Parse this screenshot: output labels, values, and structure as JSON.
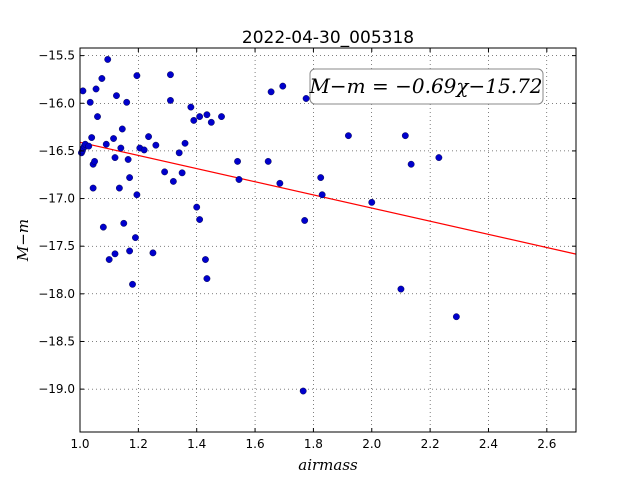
{
  "chart_data": {
    "type": "scatter",
    "title": "2022-04-30_005318",
    "xlabel": "airmass",
    "ylabel": "M−m",
    "xlim": [
      1.0,
      2.7
    ],
    "ylim": [
      -19.45,
      -15.42
    ],
    "y_axis_direction": "down-is-more-negative",
    "x_ticks": [
      "1.0",
      "1.2",
      "1.4",
      "1.6",
      "1.8",
      "2.0",
      "2.2",
      "2.4",
      "2.6"
    ],
    "y_ticks": [
      "−15.5",
      "−16.0",
      "−16.5",
      "−17.0",
      "−17.5",
      "−18.0",
      "−18.5",
      "−19.0"
    ],
    "x_tick_values": [
      1.0,
      1.2,
      1.4,
      1.6,
      1.8,
      2.0,
      2.2,
      2.4,
      2.6
    ],
    "y_tick_values": [
      -15.5,
      -16.0,
      -16.5,
      -17.0,
      -17.5,
      -18.0,
      -18.5,
      -19.0
    ],
    "grid": true,
    "grid_style": "dotted",
    "point_color": "#0000cc",
    "fit_color": "#ff0000",
    "fit": {
      "label": "M−m = −0.69χ−15.72",
      "slope": -0.69,
      "intercept": -15.72,
      "x_range": [
        1.0,
        2.7
      ],
      "placement": "top-right"
    },
    "points": [
      [
        1.005,
        -16.52
      ],
      [
        1.008,
        -16.5
      ],
      [
        1.012,
        -16.47
      ],
      [
        1.015,
        -16.45
      ],
      [
        1.018,
        -16.43
      ],
      [
        1.01,
        -15.87
      ],
      [
        1.03,
        -16.45
      ],
      [
        1.035,
        -15.99
      ],
      [
        1.04,
        -16.36
      ],
      [
        1.045,
        -16.64
      ],
      [
        1.05,
        -16.61
      ],
      [
        1.045,
        -16.89
      ],
      [
        1.055,
        -15.85
      ],
      [
        1.06,
        -16.14
      ],
      [
        1.075,
        -15.74
      ],
      [
        1.08,
        -17.3
      ],
      [
        1.09,
        -16.43
      ],
      [
        1.095,
        -15.54
      ],
      [
        1.1,
        -17.64
      ],
      [
        1.115,
        -16.37
      ],
      [
        1.12,
        -16.57
      ],
      [
        1.12,
        -17.58
      ],
      [
        1.125,
        -15.92
      ],
      [
        1.135,
        -16.89
      ],
      [
        1.14,
        -16.47
      ],
      [
        1.145,
        -16.27
      ],
      [
        1.15,
        -17.26
      ],
      [
        1.16,
        -15.99
      ],
      [
        1.165,
        -16.59
      ],
      [
        1.17,
        -16.78
      ],
      [
        1.17,
        -17.55
      ],
      [
        1.18,
        -17.9
      ],
      [
        1.19,
        -17.41
      ],
      [
        1.195,
        -16.96
      ],
      [
        1.195,
        -15.71
      ],
      [
        1.205,
        -16.47
      ],
      [
        1.22,
        -16.49
      ],
      [
        1.235,
        -16.35
      ],
      [
        1.25,
        -17.57
      ],
      [
        1.26,
        -16.44
      ],
      [
        1.29,
        -16.72
      ],
      [
        1.31,
        -15.97
      ],
      [
        1.31,
        -15.7
      ],
      [
        1.32,
        -16.82
      ],
      [
        1.34,
        -16.52
      ],
      [
        1.35,
        -16.73
      ],
      [
        1.36,
        -16.42
      ],
      [
        1.38,
        -16.04
      ],
      [
        1.39,
        -16.18
      ],
      [
        1.4,
        -17.09
      ],
      [
        1.41,
        -17.22
      ],
      [
        1.41,
        -16.14
      ],
      [
        1.43,
        -17.64
      ],
      [
        1.435,
        -17.84
      ],
      [
        1.435,
        -16.12
      ],
      [
        1.45,
        -16.2
      ],
      [
        1.485,
        -16.14
      ],
      [
        1.54,
        -16.61
      ],
      [
        1.545,
        -16.8
      ],
      [
        1.645,
        -16.61
      ],
      [
        1.655,
        -15.88
      ],
      [
        1.685,
        -16.84
      ],
      [
        1.695,
        -15.82
      ],
      [
        1.77,
        -17.23
      ],
      [
        1.775,
        -15.95
      ],
      [
        1.765,
        -19.02
      ],
      [
        1.825,
        -16.78
      ],
      [
        1.83,
        -16.96
      ],
      [
        1.92,
        -16.34
      ],
      [
        2.0,
        -17.04
      ],
      [
        2.1,
        -17.95
      ],
      [
        2.115,
        -16.34
      ],
      [
        2.135,
        -16.64
      ],
      [
        2.23,
        -16.57
      ],
      [
        2.29,
        -18.24
      ]
    ]
  }
}
